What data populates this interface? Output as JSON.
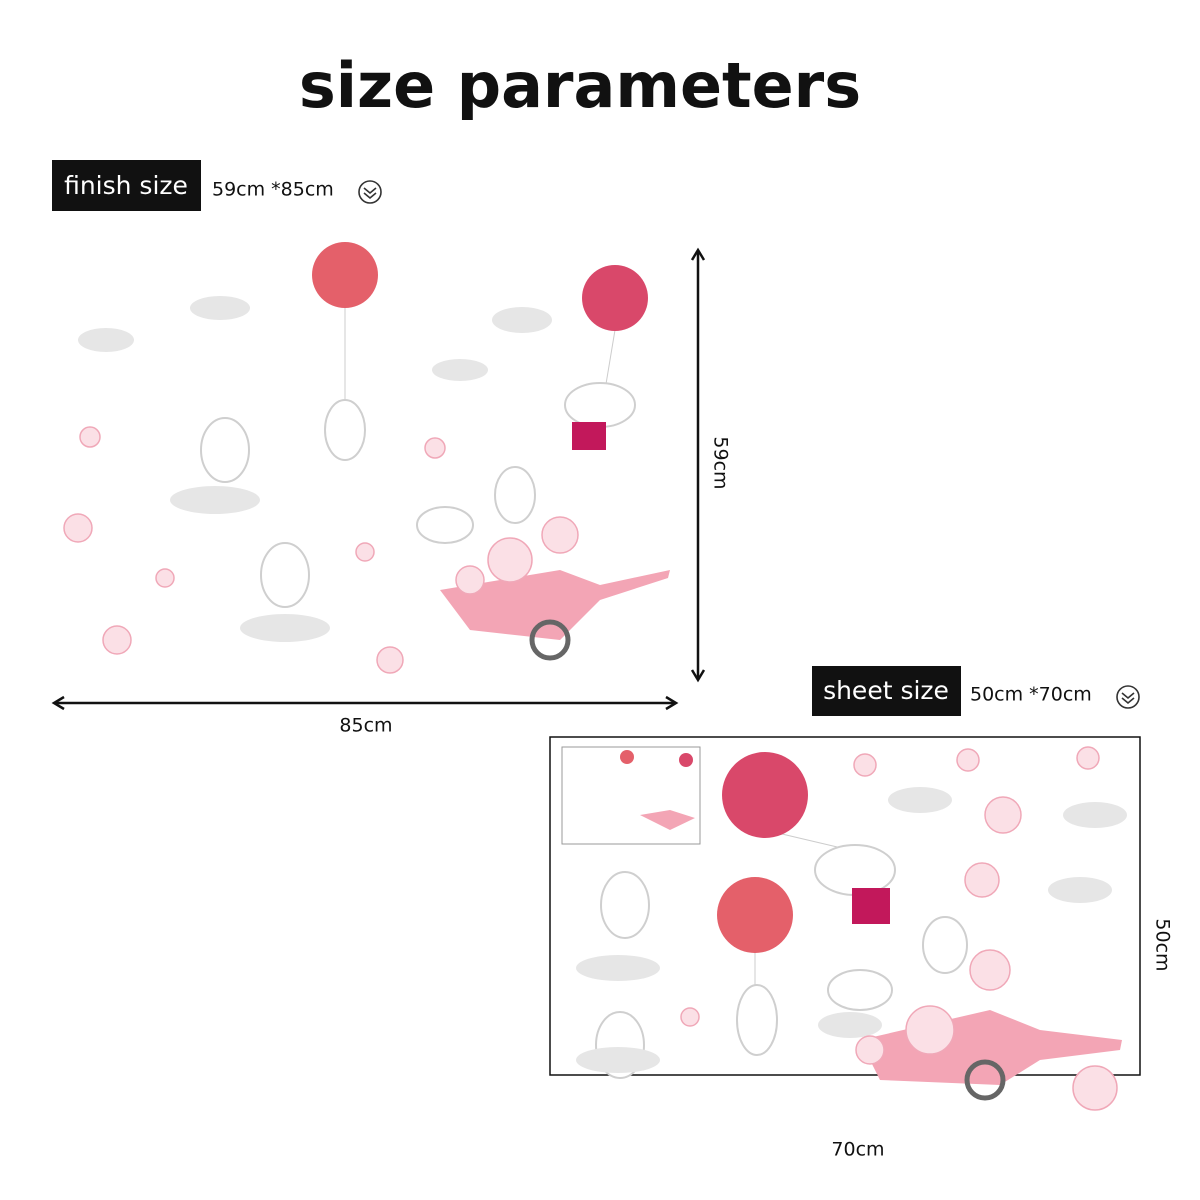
{
  "header": {
    "title": "size parameters"
  },
  "finish": {
    "label": "finish size",
    "size": "59cm *85cm",
    "height": "59cm",
    "width": "85cm"
  },
  "sheet": {
    "label": "sheet size",
    "size": "50cm *70cm",
    "height": "50cm",
    "width": "70cm"
  }
}
